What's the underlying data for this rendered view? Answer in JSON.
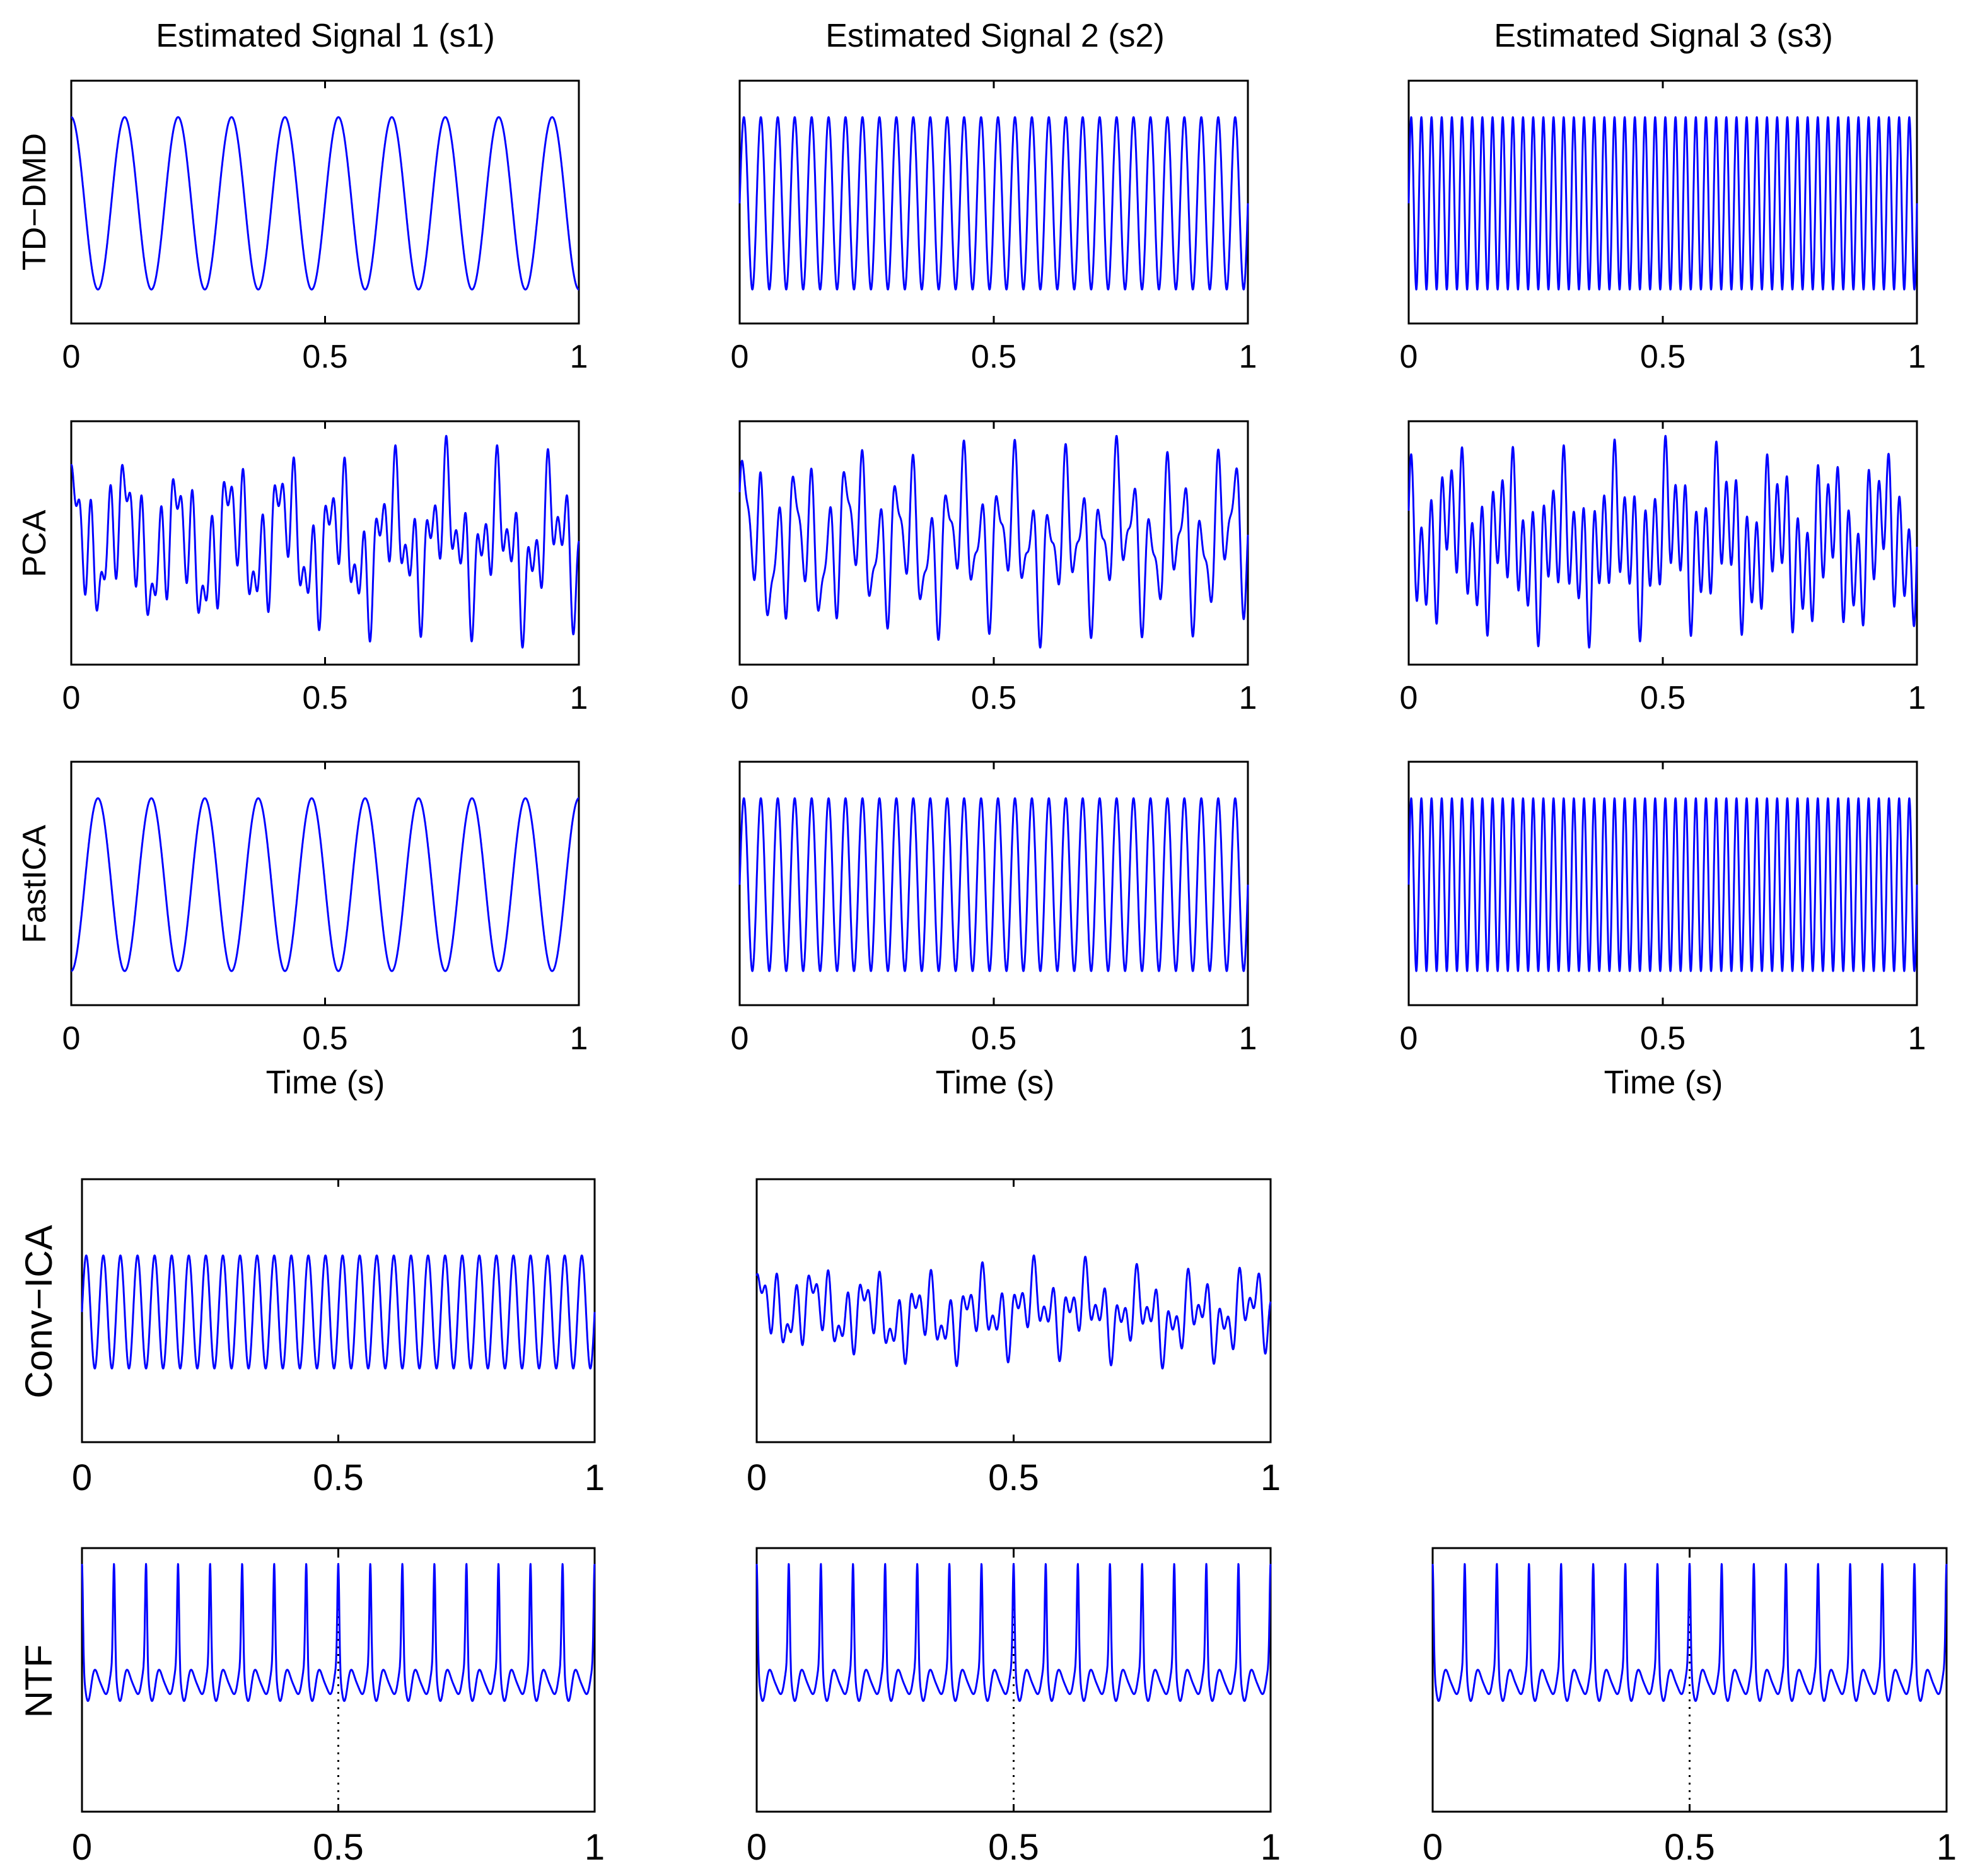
{
  "figure": {
    "column_titles": [
      "Estimated Signal 1 (s1)",
      "Estimated Signal 2 (s2)",
      "Estimated Signal 3 (s3)"
    ],
    "row_labels": [
      "TD−DMD",
      "PCA",
      "FastICA",
      "Conv−ICA",
      "NTF"
    ],
    "x_axis_label": "Time (s)"
  },
  "colors": {
    "signal": "#0000ff",
    "axes": "#000000",
    "background": "#ffffff"
  },
  "chart_data": [
    {
      "type": "line",
      "method": "TD−DMD",
      "signal": "s1",
      "x_label": "",
      "xlim": [
        0,
        1
      ],
      "xticks": [
        "0",
        "0.5",
        "1"
      ],
      "waveform": "sinusoid",
      "cycles_in_window": 9.5,
      "start_phase": "peak"
    },
    {
      "type": "line",
      "method": "TD−DMD",
      "signal": "s2",
      "x_label": "",
      "xlim": [
        0,
        1
      ],
      "xticks": [
        "0",
        "0.5",
        "1"
      ],
      "waveform": "sinusoid",
      "cycles_in_window": 30,
      "start_phase": "zero-rising"
    },
    {
      "type": "line",
      "method": "TD−DMD",
      "signal": "s3",
      "x_label": "",
      "xlim": [
        0,
        1
      ],
      "xticks": [
        "0",
        "0.5",
        "1"
      ],
      "waveform": "sinusoid",
      "cycles_in_window": 50,
      "start_phase": "zero-rising"
    },
    {
      "type": "line",
      "method": "PCA",
      "signal": "s1",
      "x_label": "",
      "xlim": [
        0,
        1
      ],
      "xticks": [
        "0",
        "0.5",
        "1"
      ],
      "waveform": "mixture",
      "components": [
        [
          9.5,
          0.5,
          1.6
        ],
        [
          30,
          0.45,
          0.3
        ],
        [
          50,
          0.4,
          2.1
        ],
        [
          3,
          0.08,
          0.5
        ]
      ]
    },
    {
      "type": "line",
      "method": "PCA",
      "signal": "s2",
      "x_label": "",
      "xlim": [
        0,
        1
      ],
      "xticks": [
        "0",
        "0.5",
        "1"
      ],
      "waveform": "mixture",
      "components": [
        [
          9.5,
          0.35,
          0.9
        ],
        [
          30,
          0.65,
          0.0
        ],
        [
          50,
          0.3,
          1.2
        ],
        [
          4,
          0.08,
          2.0
        ]
      ]
    },
    {
      "type": "line",
      "method": "PCA",
      "signal": "s3",
      "x_label": "",
      "xlim": [
        0,
        1
      ],
      "xticks": [
        "0",
        "0.5",
        "1"
      ],
      "waveform": "mixture",
      "components": [
        [
          9.5,
          0.35,
          2.5
        ],
        [
          30,
          0.25,
          0.4
        ],
        [
          50,
          0.6,
          0.0
        ],
        [
          2,
          0.06,
          1.1
        ]
      ]
    },
    {
      "type": "line",
      "method": "FastICA",
      "signal": "s1",
      "x_label": "Time (s)",
      "xlim": [
        0,
        1
      ],
      "xticks": [
        "0",
        "0.5",
        "1"
      ],
      "waveform": "sinusoid",
      "cycles_in_window": 9.5,
      "start_phase": "trough"
    },
    {
      "type": "line",
      "method": "FastICA",
      "signal": "s2",
      "x_label": "Time (s)",
      "xlim": [
        0,
        1
      ],
      "xticks": [
        "0",
        "0.5",
        "1"
      ],
      "waveform": "sinusoid",
      "cycles_in_window": 30,
      "start_phase": "zero-rising"
    },
    {
      "type": "line",
      "method": "FastICA",
      "signal": "s3",
      "x_label": "Time (s)",
      "xlim": [
        0,
        1
      ],
      "xticks": [
        "0",
        "0.5",
        "1"
      ],
      "waveform": "sinusoid",
      "cycles_in_window": 50,
      "start_phase": "zero-rising"
    },
    {
      "type": "line",
      "method": "Conv−ICA",
      "signal": "s1",
      "x_label": "",
      "xlim": [
        0,
        1
      ],
      "xticks": [
        "0",
        "0.5",
        "1"
      ],
      "waveform": "sinusoid",
      "cycles_in_window": 30,
      "start_phase": "zero-rising"
    },
    {
      "type": "line",
      "method": "Conv−ICA",
      "signal": "s2",
      "x_label": "",
      "xlim": [
        0,
        1
      ],
      "xticks": [
        "0",
        "0.5",
        "1"
      ],
      "waveform": "mixture",
      "components": [
        [
          9.5,
          0.3,
          1.0
        ],
        [
          30,
          0.4,
          0.2
        ],
        [
          50,
          0.35,
          1.9
        ],
        [
          2,
          0.1,
          0.7
        ]
      ]
    },
    {
      "type": "line",
      "method": "NTF",
      "signal": "s1",
      "x_label": "",
      "xlim": [
        0,
        1
      ],
      "xticks": [
        "0",
        "0.5",
        "1"
      ],
      "waveform": "peaky",
      "peaks_in_window": 16,
      "midline_x": 0.5
    },
    {
      "type": "line",
      "method": "NTF",
      "signal": "s2",
      "x_label": "",
      "xlim": [
        0,
        1
      ],
      "xticks": [
        "0",
        "0.5",
        "1"
      ],
      "waveform": "peaky",
      "peaks_in_window": 16,
      "midline_x": 0.5
    },
    {
      "type": "line",
      "method": "NTF",
      "signal": "s3",
      "x_label": "",
      "xlim": [
        0,
        1
      ],
      "xticks": [
        "0",
        "0.5",
        "1"
      ],
      "waveform": "peaky",
      "peaks_in_window": 16,
      "midline_x": 0.5
    }
  ]
}
